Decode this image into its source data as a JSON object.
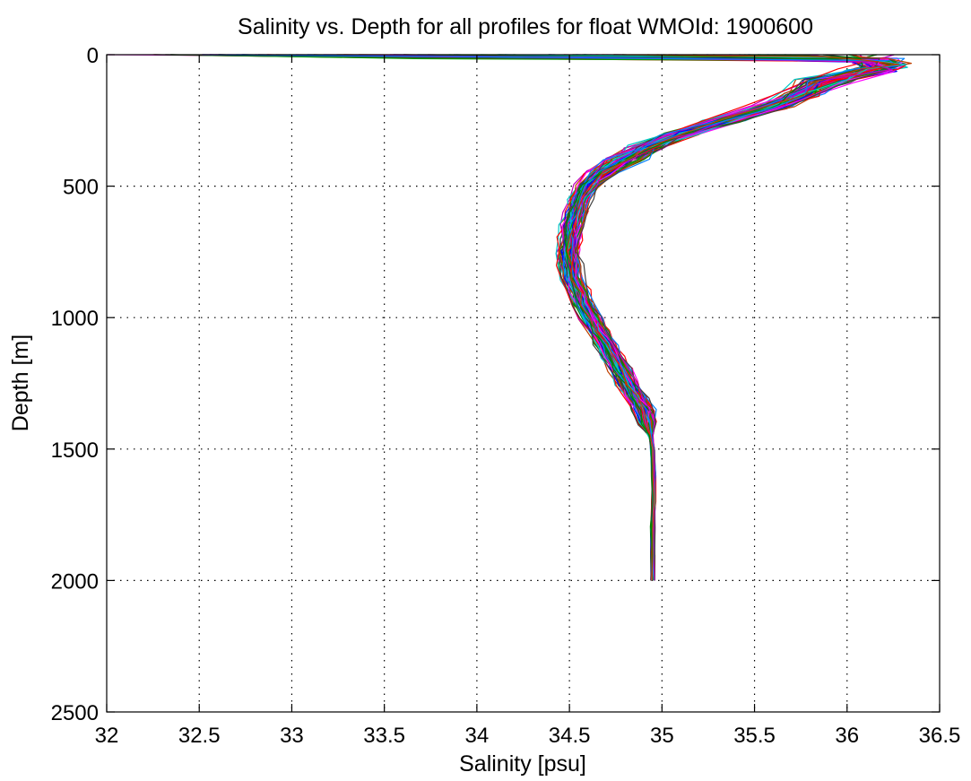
{
  "chart_data": {
    "type": "line",
    "title": "Salinity vs. Depth for all profiles for float WMOId: 1900600",
    "xlabel": "Salinity [psu]",
    "ylabel": "Depth [m]",
    "xlim": [
      32,
      36.5
    ],
    "ylim": [
      0,
      2500
    ],
    "y_axis_inverted": true,
    "grid": true,
    "xticks": [
      32,
      32.5,
      33,
      33.5,
      34,
      34.5,
      35,
      35.5,
      36,
      36.5
    ],
    "xtick_labels": [
      "32",
      "32.5",
      "33",
      "33.5",
      "34",
      "34.5",
      "35",
      "35.5",
      "36",
      "36.5"
    ],
    "yticks": [
      0,
      500,
      1000,
      1500,
      2000,
      2500
    ],
    "ytick_labels": [
      "0",
      "500",
      "1000",
      "1500",
      "2000",
      "2500"
    ],
    "series_colors": [
      "#0000ff",
      "#ff0000",
      "#00a000",
      "#ff00ff",
      "#00c8c8",
      "#404040",
      "#008000",
      "#c000c0",
      "#0080ff",
      "#c04000"
    ],
    "mean_profile": {
      "depth": [
        0,
        20,
        40,
        60,
        100,
        150,
        200,
        250,
        300,
        350,
        400,
        450,
        500,
        550,
        600,
        650,
        700,
        750,
        800,
        850,
        900,
        950,
        1000,
        1050,
        1100,
        1150,
        1200,
        1250,
        1300,
        1350,
        1400,
        1450,
        1500,
        1600,
        1700,
        1800,
        1900,
        2000
      ],
      "salinity": [
        36.1,
        36.15,
        36.2,
        36.15,
        35.9,
        35.75,
        35.6,
        35.35,
        35.1,
        34.93,
        34.8,
        34.68,
        34.6,
        34.56,
        34.54,
        34.52,
        34.51,
        34.5,
        34.51,
        34.52,
        34.55,
        34.58,
        34.62,
        34.66,
        34.7,
        34.74,
        34.78,
        34.82,
        34.86,
        34.9,
        34.92,
        34.94,
        34.95,
        34.955,
        34.955,
        34.95,
        34.95,
        34.95
      ]
    }
  }
}
